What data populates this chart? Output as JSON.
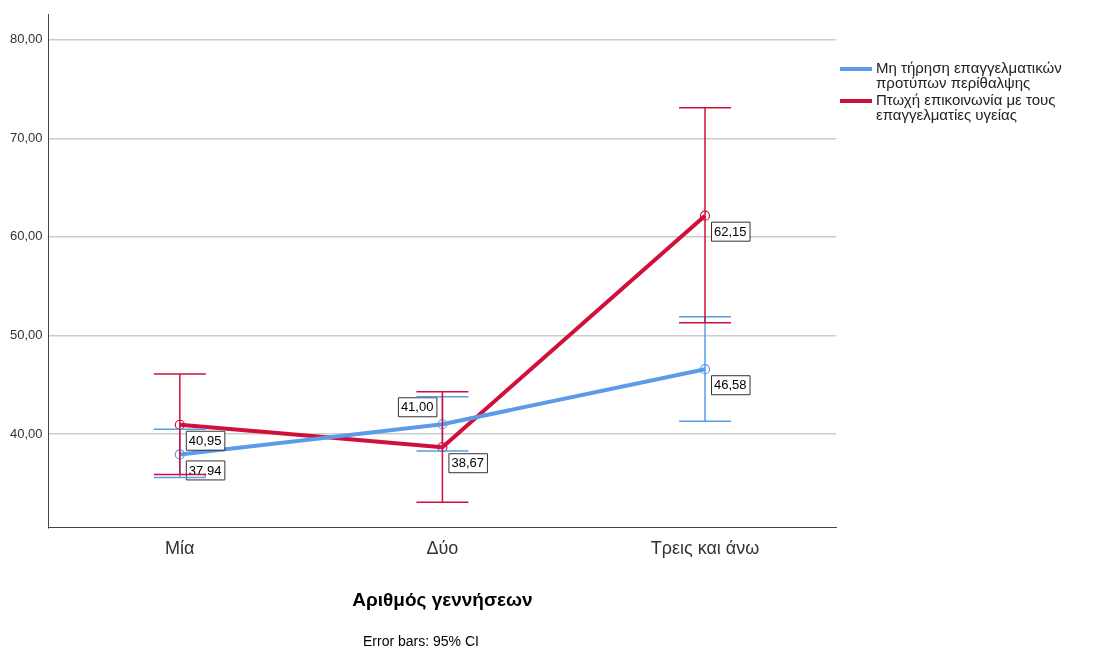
{
  "chart_data": {
    "type": "line",
    "categories": [
      "Μία",
      "Δύο",
      "Τρεις και άνω"
    ],
    "xlabel": "Αριθμός γεννήσεων",
    "series": [
      {
        "name": "Μη τήρηση επαγγελματικών προτύπων περίθαλψης",
        "color": "#5b9be8",
        "values": [
          37.94,
          41.0,
          46.58
        ],
        "value_labels": [
          "37,94",
          "41,00",
          "46,58"
        ],
        "errors": [
          [
            35.6,
            40.5
          ],
          [
            38.3,
            43.8
          ],
          [
            41.3,
            51.9
          ]
        ]
      },
      {
        "name": "Πτωχή επικοινωνία με τους επαγγελματίες υγείας",
        "color": "#d0103a",
        "values": [
          40.95,
          38.67,
          62.15
        ],
        "value_labels": [
          "40,95",
          "38,67",
          "62,15"
        ],
        "errors": [
          [
            35.9,
            46.1
          ],
          [
            33.1,
            44.3
          ],
          [
            51.3,
            73.1
          ]
        ]
      }
    ],
    "ylim": [
      30.5,
      82.6
    ],
    "yticks": [
      {
        "value": 40,
        "label": "40,00"
      },
      {
        "value": 50,
        "label": "50,00"
      },
      {
        "value": 60,
        "label": "60,00"
      },
      {
        "value": 70,
        "label": "70,00"
      },
      {
        "value": 80,
        "label": "80,00"
      }
    ],
    "grid": "y",
    "legend": "top right",
    "marker": "circle",
    "line_style": "solid",
    "annotations": [
      "Error bars: 95% CI"
    ]
  }
}
